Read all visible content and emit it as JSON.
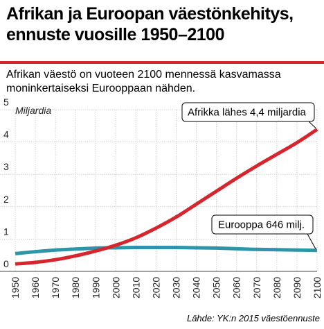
{
  "header": {
    "title_line1": "Afrikan ja Euroopan väestönkehitys,",
    "title_line2": "ennuste vuosille 1950–2100",
    "subtitle_line1": "Afrikan väestö on vuoteen 2100 mennessä kasvamassa",
    "subtitle_line2": "moninkertaiseksi Eurooppaan nähden."
  },
  "footer": {
    "source": "Lähde: YK:n 2015 väestöennuste"
  },
  "colors": {
    "africa": "#d6252c",
    "europe": "#2e95a8",
    "accent_rule": "#d6252c"
  },
  "chart_data": {
    "type": "line",
    "ylabel": "Miljardia",
    "ylim": [
      0,
      5
    ],
    "yticks": [
      "0",
      "1",
      "2",
      "3",
      "4",
      "5"
    ],
    "xlim": [
      1950,
      2100
    ],
    "xticks": [
      "1950",
      "1960",
      "1970",
      "1980",
      "1990",
      "2000",
      "2010",
      "2020",
      "2030",
      "2040",
      "2050",
      "2060",
      "2070",
      "2080",
      "2090",
      "2100"
    ],
    "grid": true,
    "series": [
      {
        "key": "africa",
        "x": [
          1950,
          1960,
          1970,
          1980,
          1990,
          2000,
          2010,
          2020,
          2030,
          2040,
          2050,
          2060,
          2070,
          2080,
          2090,
          2100
        ],
        "values": [
          0.23,
          0.28,
          0.36,
          0.48,
          0.63,
          0.81,
          1.04,
          1.34,
          1.68,
          2.08,
          2.48,
          2.88,
          3.26,
          3.62,
          3.98,
          4.39
        ]
      },
      {
        "key": "europe",
        "x": [
          1950,
          1960,
          1970,
          1980,
          1990,
          2000,
          2010,
          2020,
          2030,
          2040,
          2050,
          2060,
          2070,
          2080,
          2090,
          2100
        ],
        "values": [
          0.55,
          0.61,
          0.66,
          0.69,
          0.72,
          0.73,
          0.74,
          0.74,
          0.74,
          0.73,
          0.72,
          0.7,
          0.68,
          0.67,
          0.66,
          0.65
        ]
      }
    ],
    "annotations": [
      {
        "text": "Afrikka lähes 4,4 miljardia",
        "series": "africa"
      },
      {
        "text": "Eurooppa 646 milj.",
        "series": "europe"
      }
    ]
  }
}
